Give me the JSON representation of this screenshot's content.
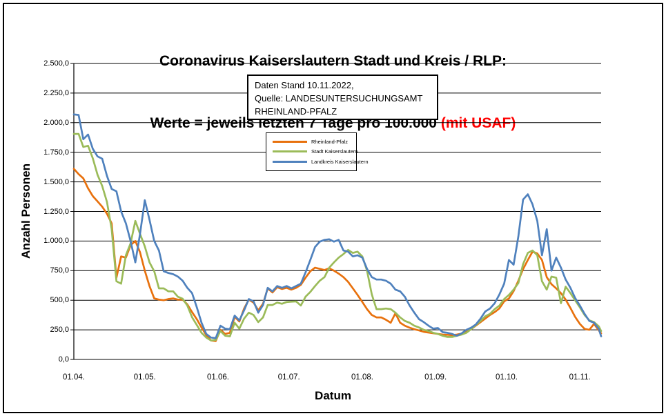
{
  "title": {
    "line1": "Coronavirus Kaiserslautern Stadt und Kreis / RLP:",
    "line2_black": "Werte = jeweils letzten 7 Tage pro 100.000 ",
    "line2_red": "(mit USAF)",
    "red_color": "#ff0000"
  },
  "info_box": {
    "line1": "Daten Stand 10.11.2022,",
    "line2": "Quelle: LANDESUNTERSUCHUNGSAMT",
    "line3": "RHEINLAND-PFALZ"
  },
  "chart_data": {
    "type": "line",
    "title": "Coronavirus Kaiserslautern Stadt und Kreis / RLP: Werte = jeweils letzten 7 Tage pro 100.000 (mit USAF)",
    "xlabel": "Datum",
    "ylabel": "Anzahl Personen",
    "ylim": [
      0,
      2500
    ],
    "x_range_days": 223,
    "x_start_date": "01.04.2022",
    "x_end_date": "10.11.2022",
    "sample_interval_days": 2,
    "grid": true,
    "legend_position": "upper-center",
    "y_ticks": [
      {
        "value": 0,
        "label": "0,0"
      },
      {
        "value": 250,
        "label": "250,0"
      },
      {
        "value": 500,
        "label": "500,0"
      },
      {
        "value": 750,
        "label": "750,0"
      },
      {
        "value": 1000,
        "label": "1.000,0"
      },
      {
        "value": 1250,
        "label": "1.250,0"
      },
      {
        "value": 1500,
        "label": "1.500,0"
      },
      {
        "value": 1750,
        "label": "1.750,0"
      },
      {
        "value": 2000,
        "label": "2.000,0"
      },
      {
        "value": 2250,
        "label": "2.250,0"
      },
      {
        "value": 2500,
        "label": "2.500,0"
      }
    ],
    "x_ticks": [
      {
        "day": 0,
        "label": "01.04."
      },
      {
        "day": 30,
        "label": "01.05."
      },
      {
        "day": 61,
        "label": "01.06."
      },
      {
        "day": 91,
        "label": "01.07."
      },
      {
        "day": 122,
        "label": "01.08."
      },
      {
        "day": 153,
        "label": "01.09."
      },
      {
        "day": 183,
        "label": "01.10."
      },
      {
        "day": 214,
        "label": "01.11."
      }
    ],
    "series": [
      {
        "name": "Rheinland-Pfalz",
        "color": "#E8710D",
        "values": [
          1610,
          1565,
          1530,
          1445,
          1380,
          1335,
          1290,
          1230,
          1150,
          690,
          870,
          860,
          965,
          1000,
          905,
          750,
          620,
          515,
          505,
          500,
          510,
          515,
          505,
          505,
          465,
          400,
          340,
          270,
          205,
          160,
          155,
          250,
          215,
          225,
          360,
          320,
          430,
          505,
          480,
          415,
          470,
          600,
          565,
          610,
          595,
          605,
          590,
          605,
          630,
          690,
          745,
          775,
          765,
          755,
          770,
          750,
          725,
          695,
          655,
          600,
          545,
          485,
          425,
          375,
          355,
          355,
          335,
          310,
          390,
          310,
          285,
          268,
          255,
          245,
          233,
          227,
          221,
          215,
          210,
          208,
          205,
          210,
          218,
          232,
          255,
          285,
          315,
          345,
          375,
          400,
          432,
          490,
          515,
          577,
          665,
          763,
          840,
          910,
          895,
          840,
          695,
          635,
          600,
          560,
          505,
          435,
          360,
          300,
          258,
          250,
          300,
          245,
          220
        ]
      },
      {
        "name": "Stadt Kaiserslautern",
        "color": "#9BBB59",
        "values": [
          1905,
          1905,
          1795,
          1805,
          1700,
          1560,
          1465,
          1330,
          1100,
          660,
          640,
          880,
          980,
          1170,
          1060,
          955,
          820,
          745,
          600,
          600,
          575,
          575,
          530,
          513,
          455,
          356,
          290,
          225,
          185,
          160,
          165,
          240,
          200,
          195,
          310,
          260,
          345,
          395,
          375,
          315,
          355,
          460,
          460,
          480,
          470,
          485,
          488,
          490,
          455,
          530,
          570,
          620,
          665,
          695,
          775,
          820,
          860,
          890,
          925,
          900,
          910,
          870,
          750,
          550,
          425,
          425,
          430,
          425,
          395,
          355,
          325,
          310,
          285,
          270,
          250,
          240,
          225,
          215,
          200,
          190,
          190,
          200,
          210,
          225,
          255,
          290,
          325,
          365,
          385,
          425,
          455,
          510,
          545,
          590,
          645,
          805,
          900,
          920,
          880,
          660,
          590,
          700,
          690,
          475,
          615,
          560,
          500,
          440,
          375,
          330,
          315,
          280,
          240
        ]
      },
      {
        "name": "Landkreis Kaiserslautern",
        "color": "#4F81BD",
        "values": [
          2070,
          2065,
          1860,
          1900,
          1780,
          1715,
          1695,
          1550,
          1440,
          1420,
          1250,
          1150,
          1000,
          820,
          1060,
          1345,
          1180,
          1000,
          920,
          745,
          730,
          720,
          700,
          665,
          605,
          560,
          440,
          310,
          215,
          185,
          180,
          285,
          260,
          255,
          370,
          330,
          415,
          510,
          490,
          395,
          460,
          605,
          575,
          620,
          605,
          620,
          600,
          620,
          640,
          735,
          840,
          950,
          995,
          1010,
          1015,
          995,
          1010,
          920,
          910,
          870,
          880,
          860,
          765,
          695,
          675,
          675,
          665,
          640,
          590,
          575,
          530,
          455,
          395,
          340,
          315,
          285,
          260,
          265,
          230,
          225,
          215,
          200,
          220,
          250,
          268,
          295,
          345,
          405,
          430,
          475,
          550,
          640,
          840,
          800,
          1040,
          1350,
          1395,
          1310,
          1170,
          880,
          1100,
          750,
          860,
          775,
          675,
          605,
          520,
          455,
          385,
          325,
          310,
          258,
          195
        ]
      }
    ]
  },
  "axes": {
    "y_title": "Anzahl Personen",
    "x_title": "Datum"
  }
}
